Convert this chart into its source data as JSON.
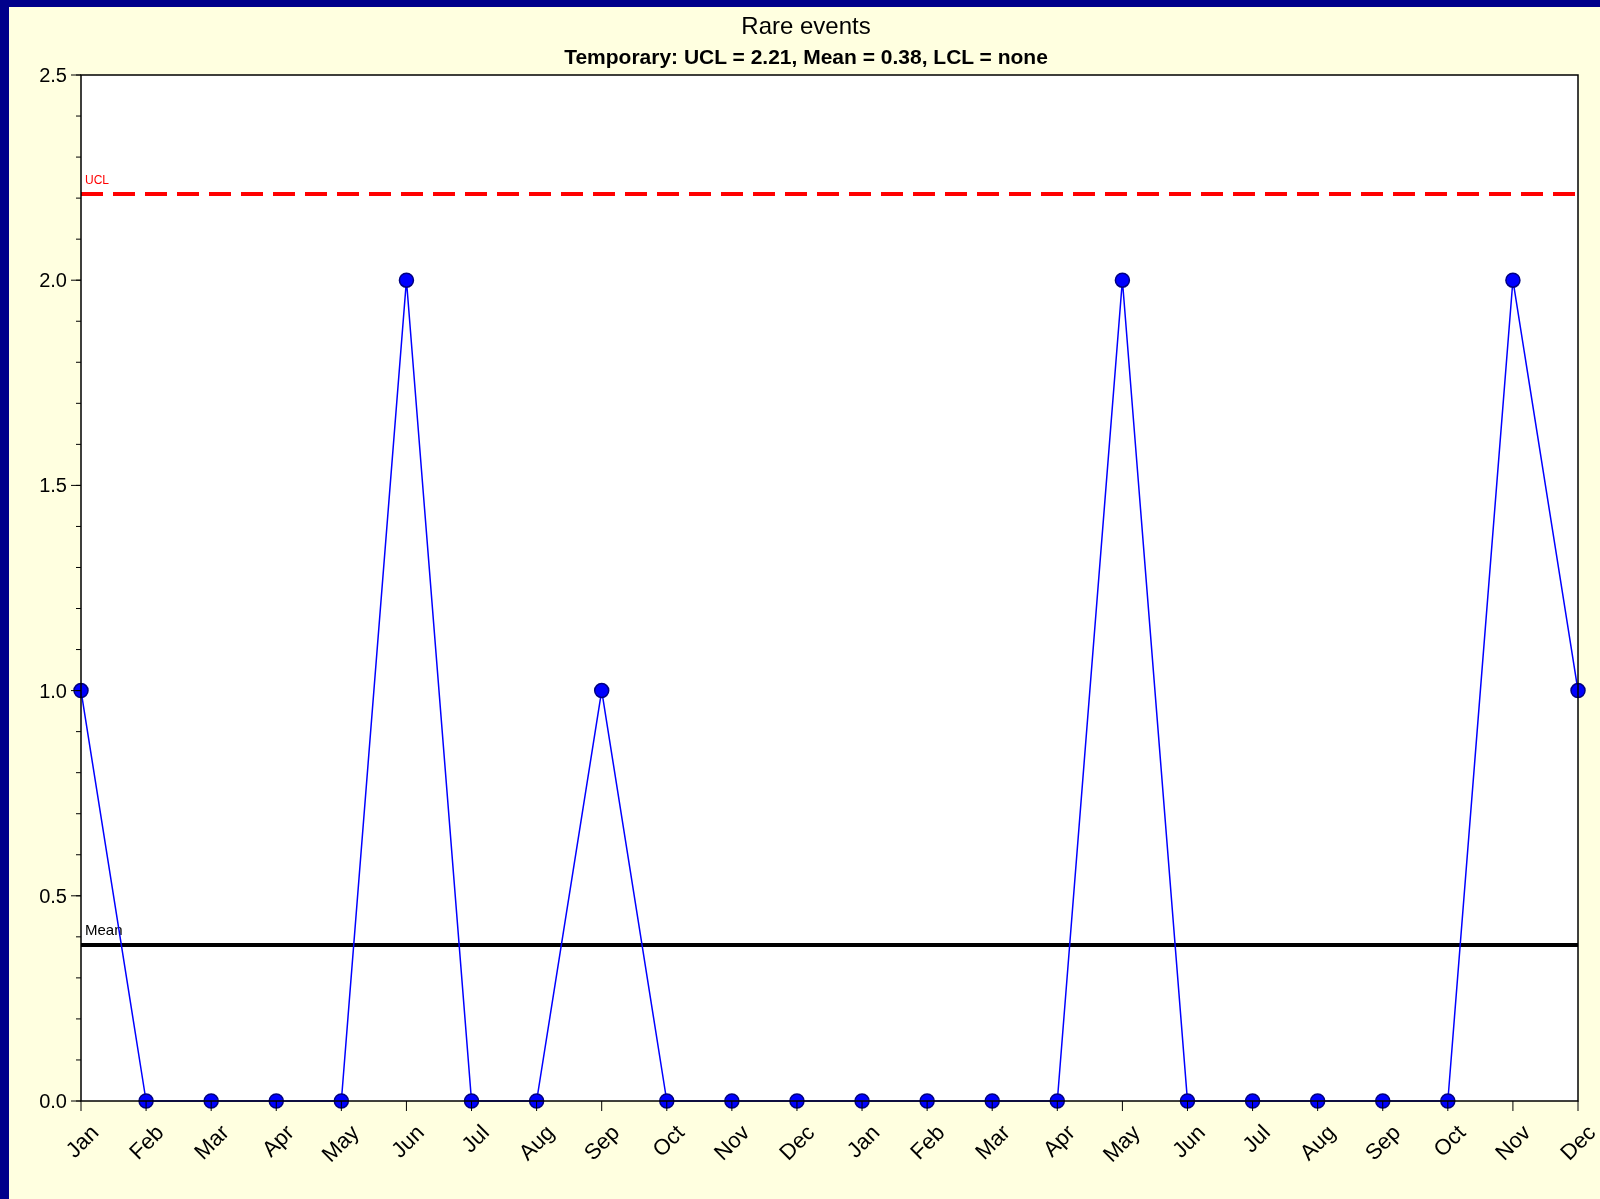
{
  "chart_data": {
    "type": "line",
    "title": "Rare events",
    "subtitle": "Temporary: UCL = 2.21, Mean = 0.38, LCL = none",
    "categories": [
      "Jan",
      "Feb",
      "Mar",
      "Apr",
      "May",
      "Jun",
      "Jul",
      "Aug",
      "Sep",
      "Oct",
      "Nov",
      "Dec",
      "Jan",
      "Feb",
      "Mar",
      "Apr",
      "May",
      "Jun",
      "Jul",
      "Aug",
      "Sep",
      "Oct",
      "Nov",
      "Dec"
    ],
    "series": [
      {
        "color": "#0000ff",
        "values": [
          1,
          0,
          0,
          0,
          0,
          2,
          0,
          0,
          1,
          0,
          0,
          0,
          0,
          0,
          0,
          0,
          2,
          0,
          0,
          0,
          0,
          0,
          2,
          1
        ]
      }
    ],
    "ylim": [
      0,
      2.5
    ],
    "yticks": [
      {
        "value": 0,
        "label": "0.0"
      },
      {
        "value": 0.5,
        "label": "0.5"
      },
      {
        "value": 1,
        "label": "1.0"
      },
      {
        "value": 1.5,
        "label": "1.5"
      },
      {
        "value": 2,
        "label": "2.0"
      },
      {
        "value": 2.5,
        "label": "2.5"
      }
    ],
    "ref_lines": [
      {
        "axis": "y",
        "value": 2.21,
        "label": "UCL",
        "color": "#ff0000",
        "line_style": "dashed"
      },
      {
        "axis": "y",
        "value": 0.38,
        "label": "Mean",
        "color": "#000000",
        "line_style": "solid"
      }
    ],
    "marker": "circle",
    "line_style": "solid",
    "grid": false
  }
}
